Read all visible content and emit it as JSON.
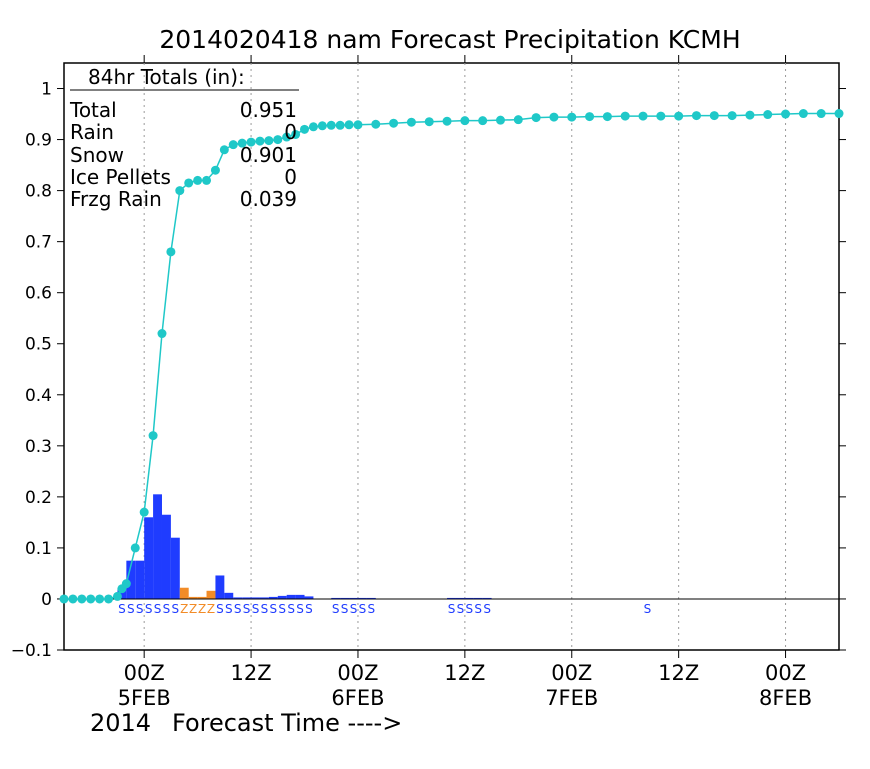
{
  "chart_data": {
    "type": "bar",
    "title": "2014020418 nam Forecast Precipitation KCMH",
    "xlabel": "Forecast Time ---->",
    "ylabel": "",
    "ylim": [
      -0.1,
      1.05
    ],
    "yticks": [
      -0.1,
      0,
      0.1,
      0.2,
      0.3,
      0.4,
      0.5,
      0.6,
      0.7,
      0.8,
      0.9,
      1
    ],
    "ytick_labels": [
      "−0.1",
      "0",
      "0.1",
      "0.2",
      "0.3",
      "0.4",
      "0.5",
      "0.6",
      "0.7",
      "0.8",
      "0.9",
      "1"
    ],
    "xlim": [
      -3,
      84
    ],
    "x_units": "forecast hour from 2014-02-04 18Z",
    "x_ticks": [
      {
        "hour": 6,
        "label": "00Z",
        "date": "5FEB",
        "year": "2014"
      },
      {
        "hour": 18,
        "label": "12Z",
        "date": "",
        "year": ""
      },
      {
        "hour": 30,
        "label": "00Z",
        "date": "6FEB",
        "year": ""
      },
      {
        "hour": 42,
        "label": "12Z",
        "date": "",
        "year": ""
      },
      {
        "hour": 54,
        "label": "00Z",
        "date": "7FEB",
        "year": ""
      },
      {
        "hour": 66,
        "label": "12Z",
        "date": "",
        "year": ""
      },
      {
        "hour": 78,
        "label": "00Z",
        "date": "8FEB",
        "year": ""
      }
    ],
    "grid": "vertical dashed at 00Z and 12Z",
    "totals_box": {
      "heading": "84hr Totals (in):",
      "rows": [
        {
          "label": "Total",
          "value": "0.951"
        },
        {
          "label": "Rain",
          "value": "0"
        },
        {
          "label": "Snow",
          "value": "0.901"
        },
        {
          "label": "Ice Pellets",
          "value": "0"
        },
        {
          "label": "Frzg Rain",
          "value": "0.039"
        }
      ]
    },
    "colors": {
      "snow": "#1f3cff",
      "frzg_rain": "#f28c28",
      "accum": "#1fc8c8",
      "ptype_snow": "#1f3cff",
      "ptype_zr": "#f28c28"
    },
    "bars": [
      {
        "x": 4,
        "value": 0.02,
        "kind": "snow"
      },
      {
        "x": 5,
        "value": 0.075,
        "kind": "snow"
      },
      {
        "x": 6,
        "value": 0.075,
        "kind": "snow"
      },
      {
        "x": 7,
        "value": 0.16,
        "kind": "snow"
      },
      {
        "x": 8,
        "value": 0.205,
        "kind": "snow"
      },
      {
        "x": 9,
        "value": 0.165,
        "kind": "snow"
      },
      {
        "x": 10,
        "value": 0.12,
        "kind": "snow"
      },
      {
        "x": 11,
        "value": 0.022,
        "kind": "frzg_rain"
      },
      {
        "x": 12,
        "value": 0.004,
        "kind": "frzg_rain"
      },
      {
        "x": 13,
        "value": 0.004,
        "kind": "frzg_rain"
      },
      {
        "x": 14,
        "value": 0.016,
        "kind": "frzg_rain"
      },
      {
        "x": 15,
        "value": 0.046,
        "kind": "snow"
      },
      {
        "x": 16,
        "value": 0.012,
        "kind": "snow"
      },
      {
        "x": 17,
        "value": 0.003,
        "kind": "snow"
      },
      {
        "x": 18,
        "value": 0.003,
        "kind": "snow"
      },
      {
        "x": 19,
        "value": 0.003,
        "kind": "snow"
      },
      {
        "x": 20,
        "value": 0.003,
        "kind": "snow"
      },
      {
        "x": 21,
        "value": 0.004,
        "kind": "snow"
      },
      {
        "x": 22,
        "value": 0.006,
        "kind": "snow"
      },
      {
        "x": 23,
        "value": 0.008,
        "kind": "snow"
      },
      {
        "x": 24,
        "value": 0.008,
        "kind": "snow"
      },
      {
        "x": 25,
        "value": 0.005,
        "kind": "snow"
      },
      {
        "x": 28,
        "value": 0.002,
        "kind": "snow"
      },
      {
        "x": 29,
        "value": 0.002,
        "kind": "snow"
      },
      {
        "x": 30,
        "value": 0.002,
        "kind": "snow"
      },
      {
        "x": 31,
        "value": 0.002,
        "kind": "snow"
      },
      {
        "x": 32,
        "value": 0.002,
        "kind": "snow"
      },
      {
        "x": 41,
        "value": 0.002,
        "kind": "snow"
      },
      {
        "x": 42,
        "value": 0.002,
        "kind": "snow"
      },
      {
        "x": 43,
        "value": 0.002,
        "kind": "snow"
      },
      {
        "x": 44,
        "value": 0.002,
        "kind": "snow"
      },
      {
        "x": 45,
        "value": 0.002,
        "kind": "snow"
      }
    ],
    "series": [
      {
        "x": [
          -3,
          -2,
          -1,
          0,
          1,
          2,
          3,
          3.5,
          4,
          5,
          6,
          7,
          8,
          9,
          10,
          11,
          12,
          13,
          14,
          15,
          16,
          17,
          18,
          19,
          20,
          21,
          22,
          23,
          24,
          25,
          26,
          27,
          28,
          29,
          30,
          32,
          34,
          36,
          38,
          40,
          42,
          44,
          46,
          48,
          50,
          52,
          54,
          56,
          58,
          60,
          62,
          64,
          66,
          68,
          70,
          72,
          74,
          76,
          78,
          80,
          82,
          84
        ],
        "values": [
          0,
          0,
          0,
          0,
          0,
          0,
          0.005,
          0.02,
          0.03,
          0.1,
          0.17,
          0.32,
          0.52,
          0.68,
          0.8,
          0.815,
          0.82,
          0.82,
          0.84,
          0.88,
          0.89,
          0.893,
          0.895,
          0.897,
          0.898,
          0.9,
          0.905,
          0.91,
          0.92,
          0.925,
          0.927,
          0.928,
          0.928,
          0.929,
          0.929,
          0.93,
          0.932,
          0.934,
          0.935,
          0.936,
          0.937,
          0.937,
          0.938,
          0.939,
          0.943,
          0.944,
          0.944,
          0.945,
          0.945,
          0.946,
          0.946,
          0.946,
          0.946,
          0.947,
          0.947,
          0.947,
          0.948,
          0.949,
          0.95,
          0.951,
          0.951,
          0.951
        ]
      }
    ],
    "ptype_strips": [
      {
        "start": 4,
        "text": "SSSSSSS",
        "kind": "snow"
      },
      {
        "start": 11,
        "text": "ZZZZ",
        "kind": "frzg_rain"
      },
      {
        "start": 15,
        "text": "SSSSSSSSSSS",
        "kind": "snow"
      },
      {
        "start": 28,
        "text": "SSSSS",
        "kind": "snow"
      },
      {
        "start": 41,
        "text": "SSSSS",
        "kind": "snow"
      },
      {
        "start": 63,
        "text": "S",
        "kind": "snow"
      }
    ],
    "ptype_step_hours": 1
  }
}
